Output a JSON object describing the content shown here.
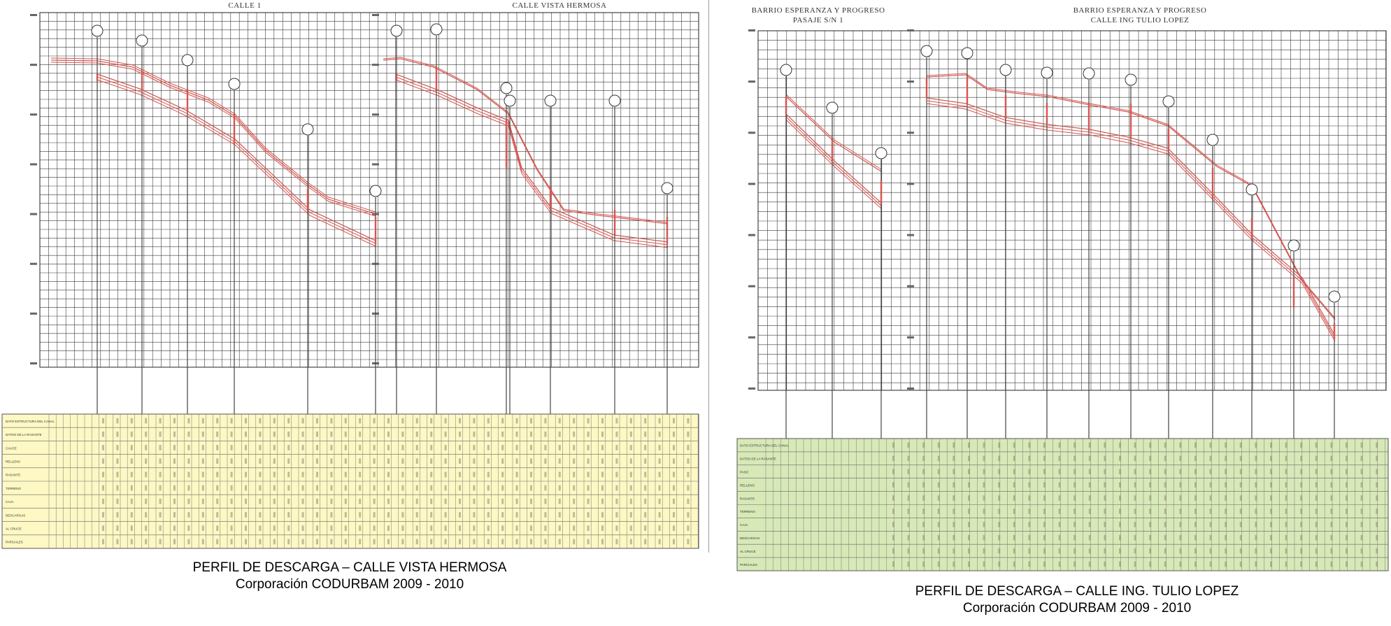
{
  "left_panel": {
    "profile_titles": [
      "CALLE 1",
      "CALLE VISTA HERMOSA"
    ],
    "caption_line1": "PERFIL DE DESCARGA – CALLE VISTA HERMOSA",
    "caption_line2": "Corporación CODURBAM 2009 - 2010",
    "table_color": "#fdf8c4",
    "row_labels": [
      "DATO ESTRUCTURA DEL CANAL",
      "DATOS DE LA RASANTE",
      "CAUCE",
      "RELLENO",
      "RASANTE",
      "TERRENO",
      "CAJA",
      "DESCARGAS",
      "AL CRUCE",
      "PARCIALES"
    ]
  },
  "right_panel": {
    "profile_titles": [
      "BARRIO ESPERANZA Y PROGRESO\nPASAJE S/N 1",
      "BARRIO ESPERANZA Y PROGRESO\nCALLE ING TULIO LOPEZ"
    ],
    "caption_line1": "PERFIL DE DESCARGA – CALLE ING. TULIO LOPEZ",
    "caption_line2": "Corporación CODURBAM 2009 - 2010",
    "table_color": "#d8e9b8",
    "row_labels": [
      "DATO ESTRUCTURA DEL CANAL",
      "DATOS DE LA RASANTE",
      "PASO",
      "RELLENO",
      "RASANTE",
      "TERRENO",
      "CAJA",
      "DESCARGAS",
      "AL CRUCE",
      "PARCIALES"
    ]
  },
  "colors": {
    "grid": "#3a3a3a",
    "pipe": "#d9534f",
    "terrain": "#8a6a4a",
    "well": "#444444"
  }
}
